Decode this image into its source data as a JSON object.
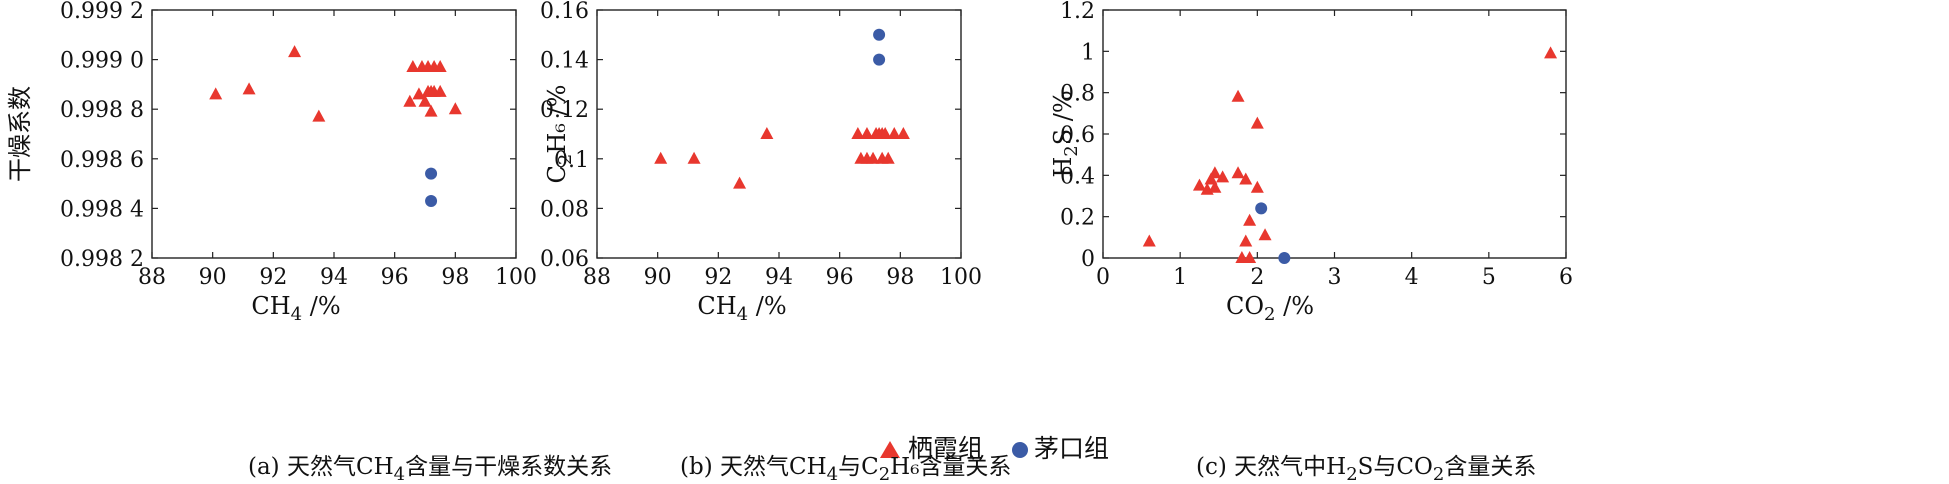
{
  "colors": {
    "qixia": "#e8372e",
    "maokou": "#3b5ba6"
  },
  "legend": {
    "qixia": "栖霞组",
    "maokou": "茅口组"
  },
  "chart_data": [
    {
      "type": "scatter",
      "caption": {
        "pre": "(a) 天然气CH",
        "sub1": "4",
        "post": "含量与干燥系数关系",
        "sub2": "",
        "tail": ""
      },
      "xlabel": {
        "main": "CH",
        "sub": "4",
        "unit": " /%"
      },
      "ylabel": {
        "main": "干燥系数",
        "sub": "",
        "unit": ""
      },
      "xlim": [
        88,
        100
      ],
      "ylim": [
        0.9982,
        0.9992
      ],
      "xticks": [
        88,
        90,
        92,
        94,
        96,
        98,
        100
      ],
      "yticks": [
        0.9982,
        0.9984,
        0.9986,
        0.9988,
        0.999,
        0.9992
      ],
      "yticklabels": [
        "0.998 2",
        "0.998 4",
        "0.998 6",
        "0.998 8",
        "0.999 0",
        "0.999 2"
      ],
      "series": [
        {
          "name": "栖霞组",
          "marker": "triangle",
          "points": [
            [
              90.1,
              0.99886
            ],
            [
              91.2,
              0.99888
            ],
            [
              92.7,
              0.99903
            ],
            [
              93.5,
              0.99877
            ],
            [
              96.5,
              0.99883
            ],
            [
              96.6,
              0.99897
            ],
            [
              96.8,
              0.99886
            ],
            [
              96.9,
              0.99897
            ],
            [
              97.0,
              0.99883
            ],
            [
              97.1,
              0.99897
            ],
            [
              97.1,
              0.99887
            ],
            [
              97.2,
              0.99879
            ],
            [
              97.2,
              0.99887
            ],
            [
              97.3,
              0.99897
            ],
            [
              97.3,
              0.99887
            ],
            [
              97.5,
              0.99897
            ],
            [
              97.5,
              0.99887
            ],
            [
              98.0,
              0.9988
            ]
          ]
        },
        {
          "name": "茅口组",
          "marker": "circle",
          "points": [
            [
              97.2,
              0.99854
            ],
            [
              97.2,
              0.99843
            ]
          ]
        }
      ]
    },
    {
      "type": "scatter",
      "caption": {
        "pre": "(b) 天然气CH",
        "sub1": "4",
        "post": "与C",
        "sub2": "2",
        "tail": "H₆含量关系"
      },
      "xlabel": {
        "main": "CH",
        "sub": "4",
        "unit": " /%"
      },
      "ylabel": {
        "main": "C",
        "sub": "2",
        "unit": "H₆ /%"
      },
      "xlim": [
        88,
        100
      ],
      "ylim": [
        0.06,
        0.16
      ],
      "xticks": [
        88,
        90,
        92,
        94,
        96,
        98,
        100
      ],
      "yticks": [
        0.06,
        0.08,
        0.1,
        0.12,
        0.14,
        0.16
      ],
      "yticklabels": [
        "0.06",
        "0.08",
        "0.1",
        "0.12",
        "0.14",
        "0.16"
      ],
      "series": [
        {
          "name": "栖霞组",
          "marker": "triangle",
          "points": [
            [
              90.1,
              0.1
            ],
            [
              91.2,
              0.1
            ],
            [
              92.7,
              0.09
            ],
            [
              93.6,
              0.11
            ],
            [
              96.6,
              0.11
            ],
            [
              96.7,
              0.1
            ],
            [
              96.9,
              0.1
            ],
            [
              96.9,
              0.11
            ],
            [
              97.1,
              0.1
            ],
            [
              97.2,
              0.11
            ],
            [
              97.3,
              0.11
            ],
            [
              97.4,
              0.1
            ],
            [
              97.4,
              0.11
            ],
            [
              97.5,
              0.11
            ],
            [
              97.6,
              0.1
            ],
            [
              97.8,
              0.11
            ],
            [
              98.1,
              0.11
            ]
          ]
        },
        {
          "name": "茅口组",
          "marker": "circle",
          "points": [
            [
              97.3,
              0.15
            ],
            [
              97.3,
              0.14
            ]
          ]
        }
      ]
    },
    {
      "type": "scatter",
      "caption": {
        "pre": "(c) 天然气中H",
        "sub1": "2",
        "post": "S与CO",
        "sub2": "2",
        "tail": "含量关系"
      },
      "xlabel": {
        "main": "CO",
        "sub": "2",
        "unit": " /%"
      },
      "ylabel": {
        "main": "H",
        "sub": "2",
        "unit": "S /%"
      },
      "xlim": [
        0,
        6
      ],
      "ylim": [
        0,
        1.2
      ],
      "xticks": [
        0,
        1,
        2,
        3,
        4,
        5,
        6
      ],
      "yticks": [
        0,
        0.2,
        0.4,
        0.6,
        0.8,
        1,
        1.2
      ],
      "yticklabels": [
        "0",
        "0.2",
        "0.4",
        "0.6",
        "0.8",
        "1",
        "1.2"
      ],
      "series": [
        {
          "name": "栖霞组",
          "marker": "triangle",
          "points": [
            [
              0.6,
              0.08
            ],
            [
              1.25,
              0.35
            ],
            [
              1.35,
              0.33
            ],
            [
              1.4,
              0.38
            ],
            [
              1.45,
              0.41
            ],
            [
              1.45,
              0.34
            ],
            [
              1.55,
              0.39
            ],
            [
              1.75,
              0.78
            ],
            [
              1.75,
              0.41
            ],
            [
              1.8,
              0.0
            ],
            [
              1.85,
              0.08
            ],
            [
              1.85,
              0.38
            ],
            [
              1.9,
              0.18
            ],
            [
              1.9,
              0.0
            ],
            [
              2.0,
              0.34
            ],
            [
              2.0,
              0.65
            ],
            [
              2.1,
              0.11
            ],
            [
              5.8,
              0.99
            ]
          ]
        },
        {
          "name": "茅口组",
          "marker": "circle",
          "points": [
            [
              2.05,
              0.24
            ],
            [
              2.35,
              0.0
            ]
          ]
        }
      ]
    }
  ]
}
